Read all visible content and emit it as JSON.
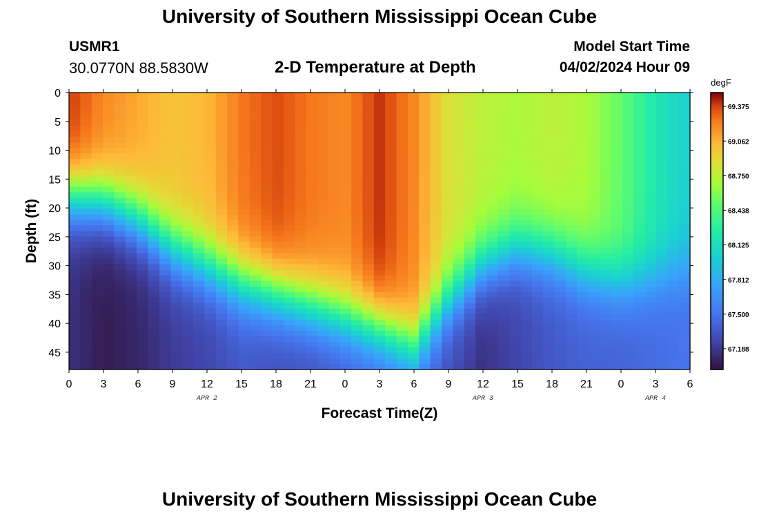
{
  "header": {
    "title": "University of Southern Mississippi Ocean Cube",
    "station": "USMR1",
    "coords": "30.0770N  88.5830W",
    "subtitle": "2-D Temperature at Depth",
    "model_start_label": "Model Start Time",
    "model_start_value": "04/02/2024 Hour 09"
  },
  "footer": {
    "title": "University of Southern Mississippi Ocean Cube"
  },
  "chart_data": {
    "type": "heatmap",
    "title": "2-D Temperature at Depth",
    "xlabel": "Forecast Time(Z)",
    "ylabel": "Depth (ft)",
    "x_tick_labels": [
      "0",
      "3",
      "6",
      "9",
      "12",
      "15",
      "18",
      "21",
      "0",
      "3",
      "6",
      "9",
      "12",
      "15",
      "18",
      "21",
      "0",
      "3",
      "6"
    ],
    "x_range_hours": [
      0,
      54
    ],
    "y_ticks": [
      0,
      5,
      10,
      15,
      20,
      25,
      30,
      35,
      40,
      45
    ],
    "y_range_ft": [
      0,
      48
    ],
    "date_labels": [
      {
        "text": "APR 2",
        "hour": 12
      },
      {
        "text": "APR 3",
        "hour": 36
      },
      {
        "text": "APR 4",
        "hour": 51
      }
    ],
    "colorbar": {
      "unit": "degF",
      "min": 67.0,
      "max": 69.5,
      "tick_labels": [
        "69.375",
        "69.062",
        "68.750",
        "68.438",
        "68.125",
        "67.812",
        "67.500",
        "67.188"
      ],
      "tick_values": [
        69.375,
        69.062,
        68.75,
        68.438,
        68.125,
        67.812,
        67.5,
        67.188
      ]
    },
    "grid_cells_x": 55,
    "grid_cells_y": 50,
    "profile_hours": [
      0,
      3,
      6,
      9,
      12,
      15,
      18,
      21,
      24,
      27,
      30,
      33,
      36,
      39,
      42,
      45,
      48,
      51,
      54
    ],
    "thermocline_depth_ft": [
      18,
      19,
      22,
      27,
      30,
      33,
      35,
      37,
      39,
      41,
      44,
      36,
      30,
      27,
      28,
      31,
      33,
      32,
      30
    ],
    "surface_temp_degF": [
      69.4,
      69.2,
      69.1,
      69.0,
      69.05,
      69.25,
      69.35,
      69.25,
      69.2,
      69.4,
      69.2,
      68.85,
      68.75,
      68.7,
      68.75,
      68.7,
      68.5,
      68.2,
      68.0
    ],
    "deep_temp_degF": [
      67.15,
      67.05,
      67.1,
      67.2,
      67.25,
      67.35,
      67.3,
      67.3,
      67.35,
      67.4,
      67.45,
      67.3,
      67.15,
      67.25,
      67.35,
      67.4,
      67.4,
      67.45,
      67.5
    ]
  }
}
